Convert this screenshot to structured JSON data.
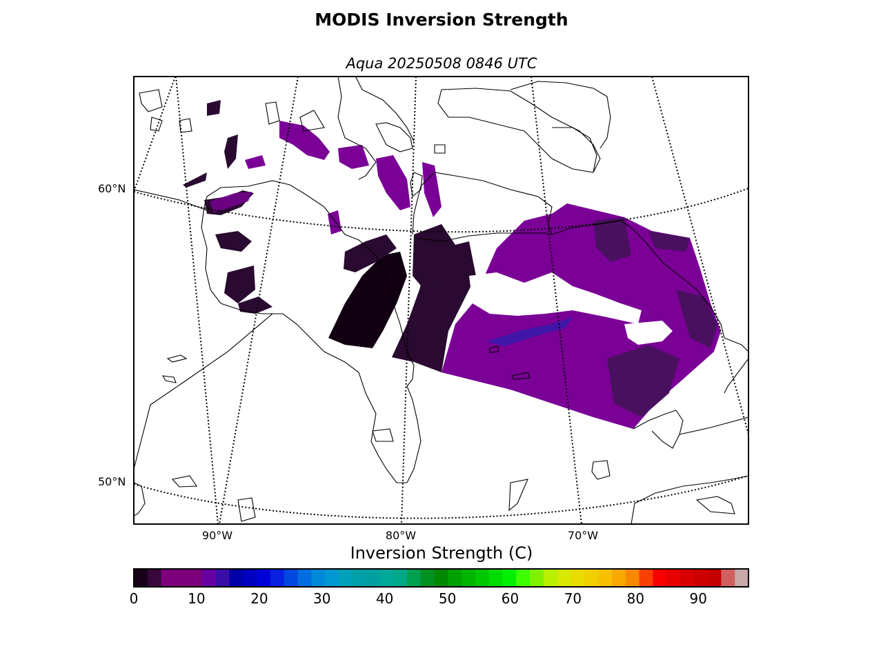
{
  "title": "MODIS Inversion Strength",
  "subtitle": "Aqua 20250508 0846 UTC",
  "map": {
    "projection": "conic",
    "lat_labels": [
      "60°N",
      "50°N"
    ],
    "lon_labels": [
      "90°W",
      "80°W",
      "70°W"
    ],
    "coastline_color": "#000000",
    "graticule_style": "dotted",
    "data_colors": {
      "dominant": "#7a0096",
      "dark": "#2a0a30",
      "darkest": "#120012",
      "accent": "#2820b0"
    }
  },
  "colorbar": {
    "label": "Inversion Strength (C)",
    "ticks": [
      "0",
      "10",
      "20",
      "30",
      "40",
      "50",
      "60",
      "70",
      "80",
      "90"
    ],
    "tick_values": [
      0,
      10,
      20,
      30,
      40,
      50,
      60,
      70,
      80,
      90
    ],
    "range": [
      0,
      98
    ],
    "colors": [
      "#180018",
      "#38083a",
      "#7c007c",
      "#7c007c",
      "#7c007c",
      "#6600a0",
      "#3a0ea6",
      "#0000a8",
      "#0000c0",
      "#0000d8",
      "#0a20e0",
      "#0048e0",
      "#006ee0",
      "#0088d8",
      "#0098d0",
      "#00a0b8",
      "#00a0a8",
      "#00a0a0",
      "#00a898",
      "#00a888",
      "#00a050",
      "#009020",
      "#008800",
      "#00a000",
      "#00b400",
      "#00c800",
      "#00dc00",
      "#00f000",
      "#40ff00",
      "#80f000",
      "#b8f000",
      "#d8e800",
      "#e8dc00",
      "#f0d000",
      "#f8c000",
      "#f8a800",
      "#f88800",
      "#f84000",
      "#f80000",
      "#e80000",
      "#d80000",
      "#cc0000",
      "#c40000",
      "#d06060",
      "#c8a8a8"
    ]
  }
}
